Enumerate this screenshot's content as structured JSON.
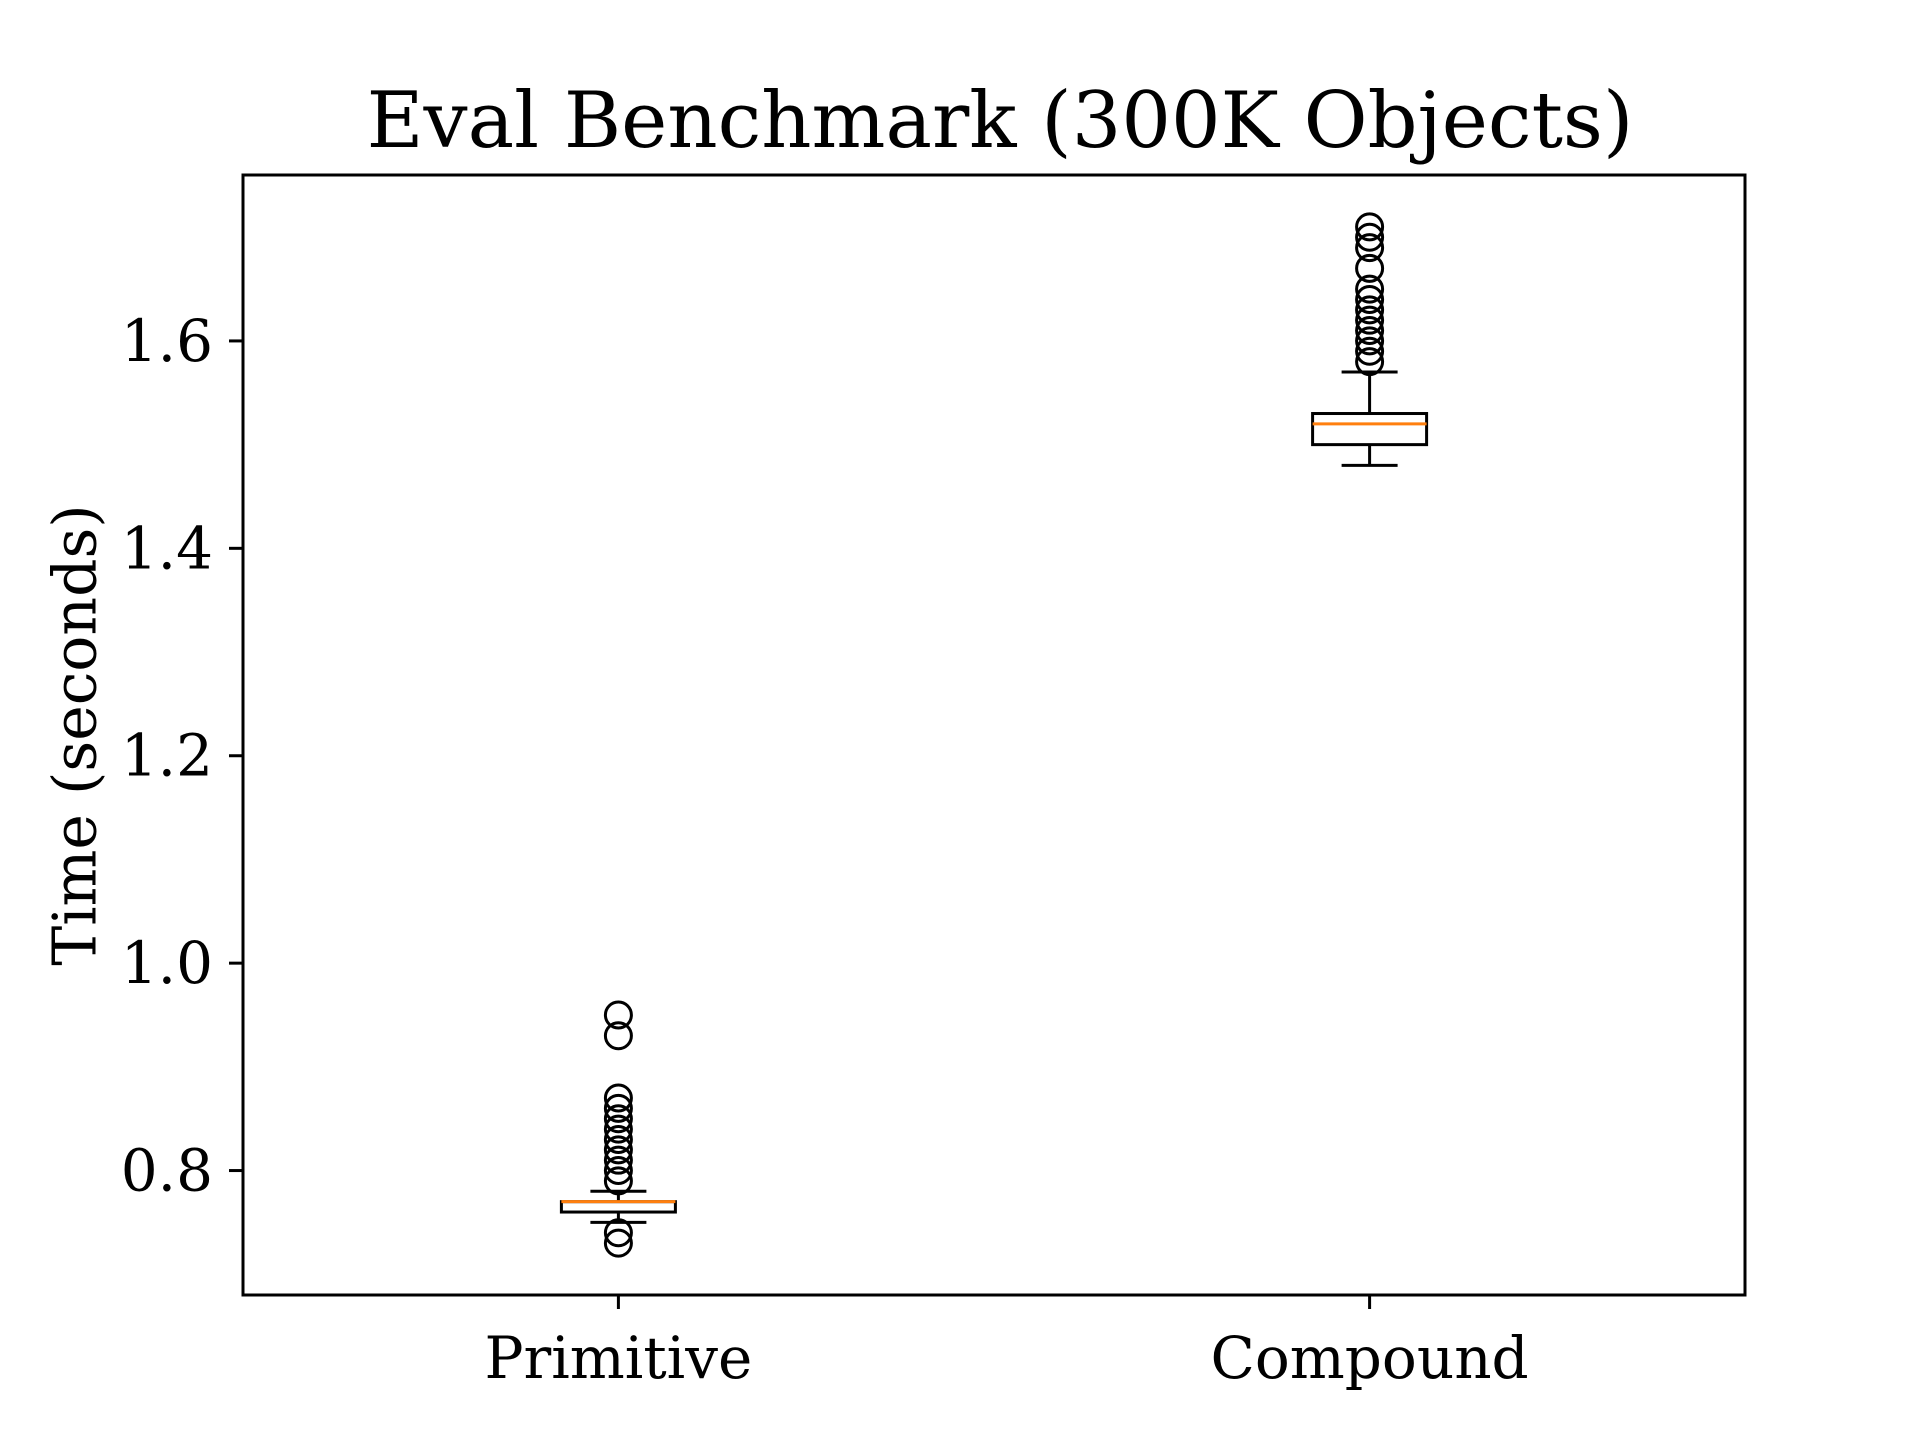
{
  "chart_data": {
    "type": "box",
    "title": "Eval Benchmark (300K Objects)",
    "xlabel": "",
    "ylabel": "Time (seconds)",
    "ylim": [
      0.68,
      1.76
    ],
    "y_ticks": [
      0.8,
      1.0,
      1.2,
      1.4,
      1.6
    ],
    "y_tick_labels": [
      "0.8",
      "1.0",
      "1.2",
      "1.4",
      "1.6"
    ],
    "categories": [
      "Primitive",
      "Compound"
    ],
    "grid": false,
    "series": [
      {
        "name": "Primitive",
        "whisker_low": 0.75,
        "q1": 0.76,
        "median": 0.77,
        "q3": 0.77,
        "whisker_high": 0.78,
        "outliers": [
          0.73,
          0.74,
          0.79,
          0.8,
          0.81,
          0.82,
          0.83,
          0.84,
          0.85,
          0.86,
          0.87,
          0.93,
          0.95
        ]
      },
      {
        "name": "Compound",
        "whisker_low": 1.48,
        "q1": 1.5,
        "median": 1.52,
        "q3": 1.53,
        "whisker_high": 1.57,
        "outliers": [
          1.58,
          1.59,
          1.6,
          1.61,
          1.62,
          1.63,
          1.64,
          1.65,
          1.67,
          1.69,
          1.7,
          1.71
        ]
      }
    ],
    "colors": {
      "median": "#ff7f0e",
      "box": "#000000",
      "whisker": "#000000",
      "outlier": "#000000"
    }
  }
}
